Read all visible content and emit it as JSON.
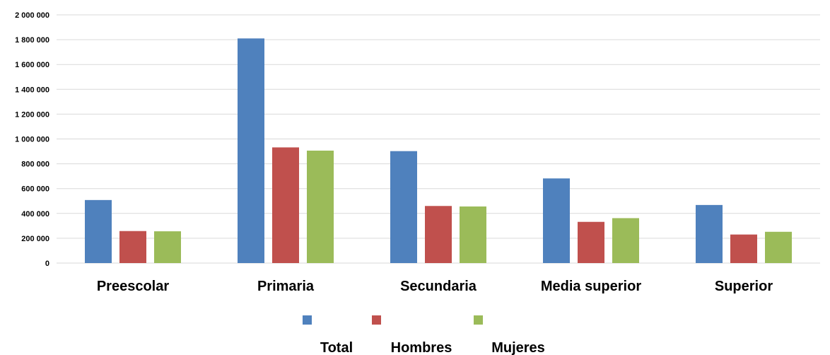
{
  "chart_data": {
    "type": "bar",
    "title": "",
    "xlabel": "",
    "ylabel": "",
    "categories": [
      "Preescolar",
      "Primaria",
      "Secundaria",
      "Media superior",
      "Superior"
    ],
    "series": [
      {
        "name": "Total",
        "color": "#4F81BD",
        "values": [
          508000,
          1810000,
          902000,
          682000,
          468000
        ]
      },
      {
        "name": "Hombres",
        "color": "#C0504D",
        "values": [
          258000,
          932000,
          460000,
          332000,
          230000
        ]
      },
      {
        "name": "Mujeres",
        "color": "#9BBB59",
        "values": [
          256000,
          906000,
          456000,
          362000,
          252000
        ]
      }
    ],
    "ylim": [
      0,
      2000000
    ],
    "yticks": [
      "0",
      "200 000",
      "400 000",
      "600 000",
      "800 000",
      "1 000 000",
      "1 200 000",
      "1 400 000",
      "1 600 000",
      "1 800 000",
      "2 000 000"
    ],
    "grid": true,
    "legend_position": "bottom",
    "gridline_color": "#D9D9D9"
  }
}
